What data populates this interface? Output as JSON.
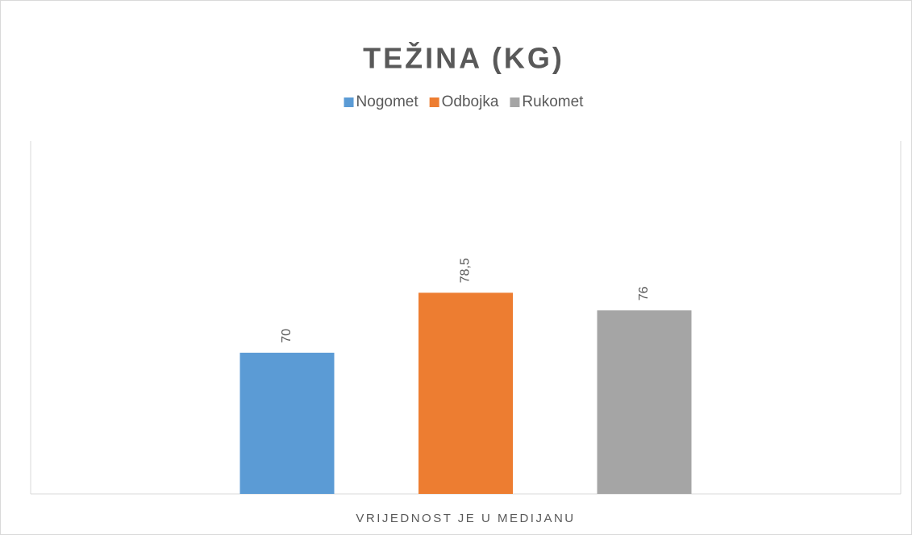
{
  "chart_data": {
    "type": "bar",
    "title": "TEŽINA (KG)",
    "categories": [
      "VRIJEDNOST JE U MEDIJANU"
    ],
    "series": [
      {
        "name": "Nogomet",
        "color": "#5b9bd5",
        "values": [
          70
        ],
        "value_labels": [
          "70"
        ]
      },
      {
        "name": "Odbojka",
        "color": "#ed7d31",
        "values": [
          78.5
        ],
        "value_labels": [
          "78,5"
        ]
      },
      {
        "name": "Rukomet",
        "color": "#a5a5a5",
        "values": [
          76
        ],
        "value_labels": [
          "76"
        ]
      }
    ],
    "ylim": [
      50,
      100
    ],
    "legend": "top"
  }
}
